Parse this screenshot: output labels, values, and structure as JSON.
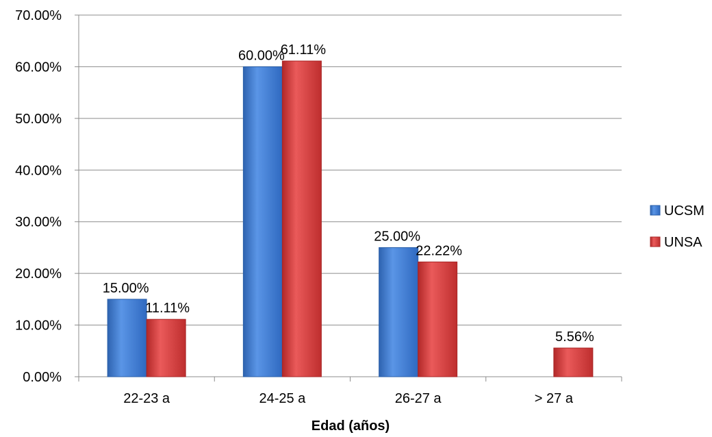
{
  "chart_data": {
    "type": "bar",
    "title": "",
    "xlabel": "Edad (años)",
    "ylabel": "",
    "categories": [
      "22-23 a",
      "24-25 a",
      "26-27 a",
      "> 27 a"
    ],
    "series": [
      {
        "name": "UCSM",
        "values": [
          15.0,
          60.0,
          25.0,
          null
        ],
        "labels": [
          "15.00%",
          "60.00%",
          "25.00%",
          null
        ],
        "color": "#3F7FD8"
      },
      {
        "name": "UNSA",
        "values": [
          11.11,
          61.11,
          22.22,
          5.56
        ],
        "labels": [
          "11.11%",
          "61.11%",
          "22.22%",
          "5.56%"
        ],
        "color": "#D94040"
      }
    ],
    "ylim": [
      0,
      70
    ],
    "yticks": [
      0,
      10,
      20,
      30,
      40,
      50,
      60,
      70
    ],
    "ytick_labels": [
      "0.00%",
      "10.00%",
      "20.00%",
      "30.00%",
      "40.00%",
      "50.00%",
      "60.00%",
      "70.00%"
    ],
    "grid": true,
    "legend_position": "right"
  }
}
